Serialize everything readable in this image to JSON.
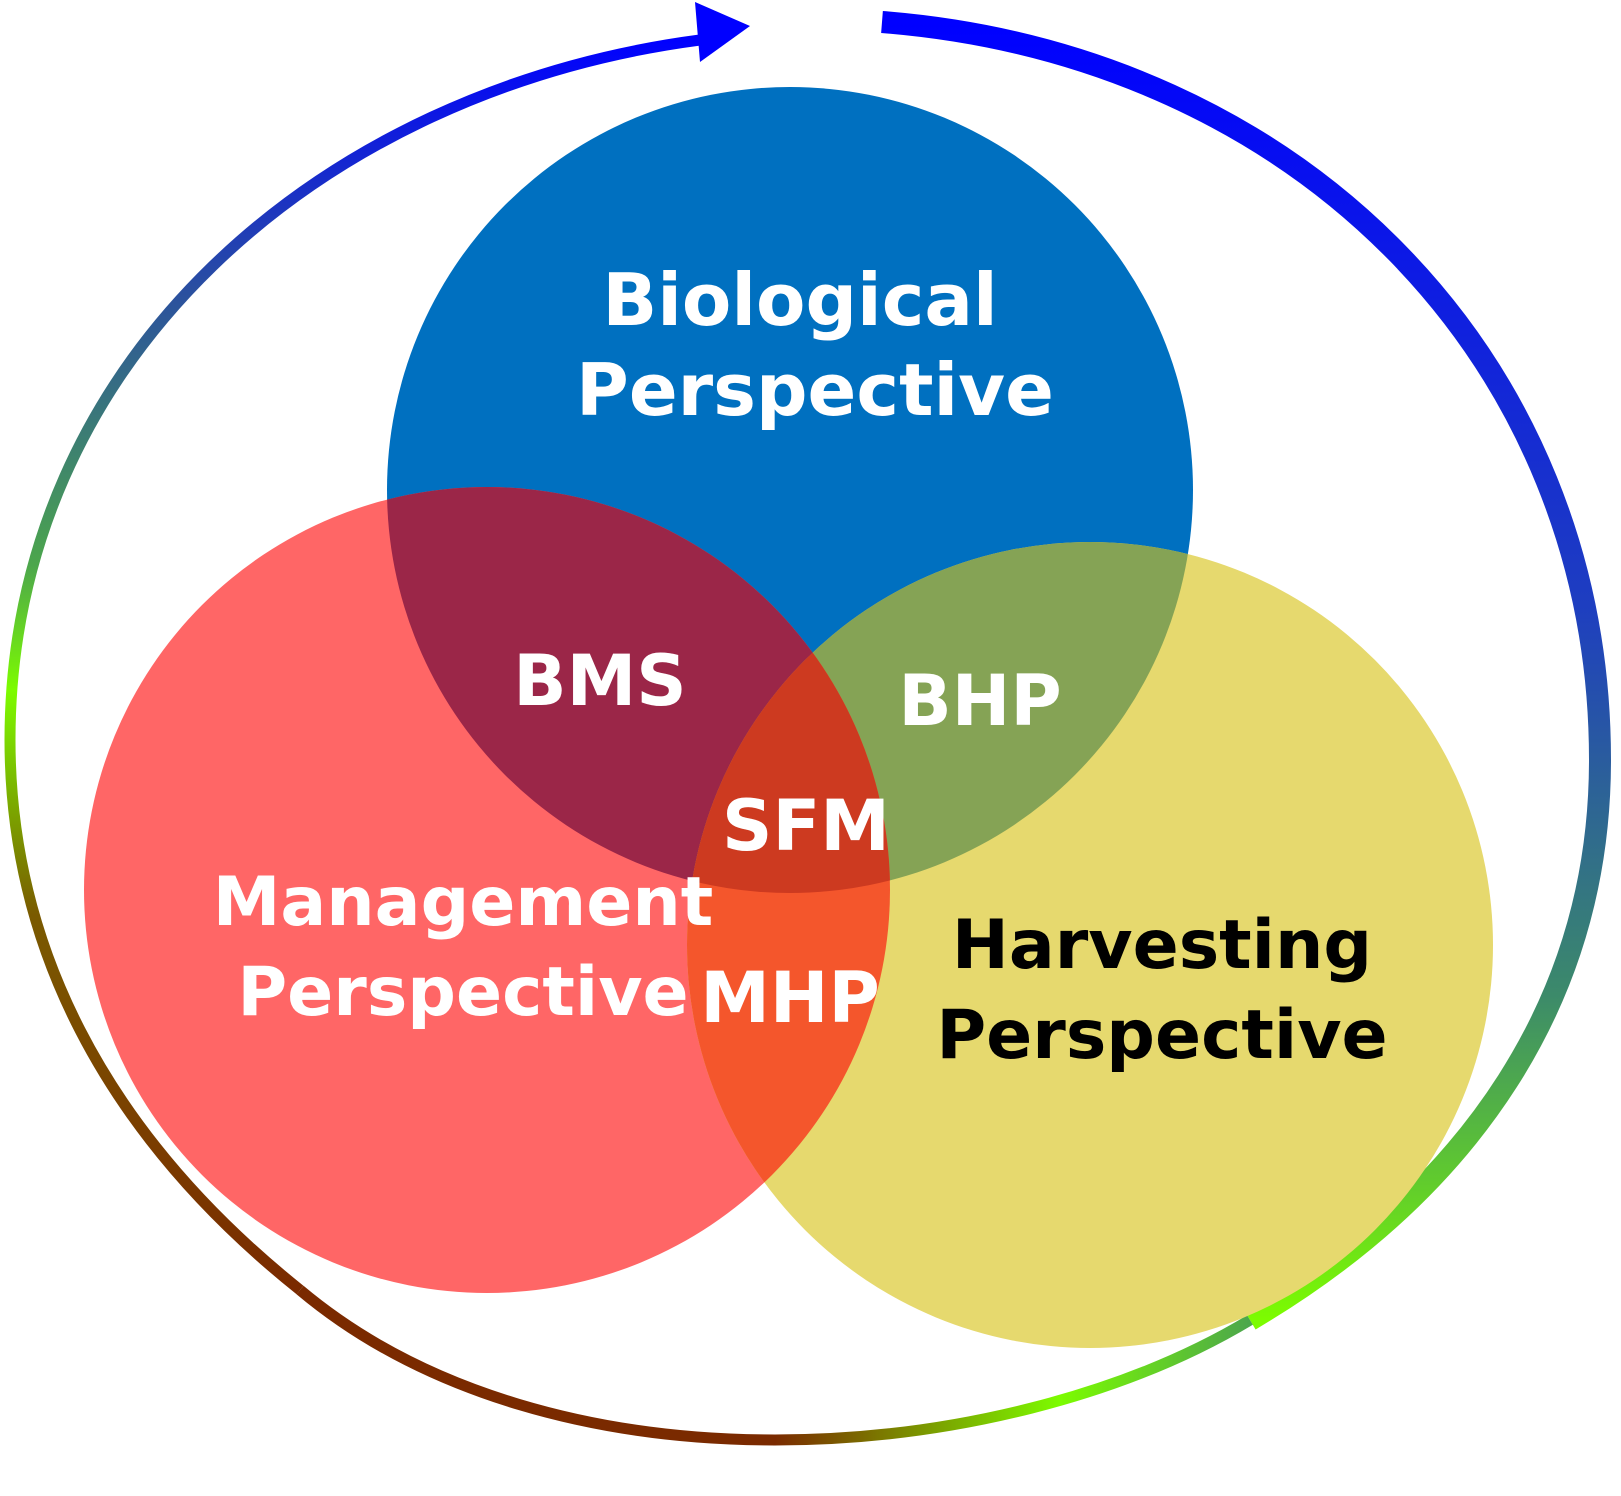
{
  "circles": {
    "biological": {
      "line1": "Biological",
      "line2": "Perspective",
      "color": "#0070C0"
    },
    "management": {
      "line1": "Management",
      "line2": "Perspective",
      "color": "#FF6666"
    },
    "harvesting": {
      "line1": "Harvesting",
      "line2": "Perspective",
      "color": "#E6D96E"
    }
  },
  "intersections": {
    "bms": {
      "label": "BMS",
      "color": "#9B2648"
    },
    "bhp": {
      "label": "BHP",
      "color": "#85A355"
    },
    "mhp": {
      "label": "MHP",
      "color": "#F4562C"
    },
    "sfm": {
      "label": "SFM",
      "color": "#CD3A20"
    }
  },
  "cycle_arrow": {
    "colors": [
      "#0000FF",
      "#2A4FA0",
      "#4CA64C",
      "#7CFC00",
      "#7A2A00"
    ]
  },
  "text_colors": {
    "light": "#FFFFFF",
    "dark": "#000000"
  }
}
